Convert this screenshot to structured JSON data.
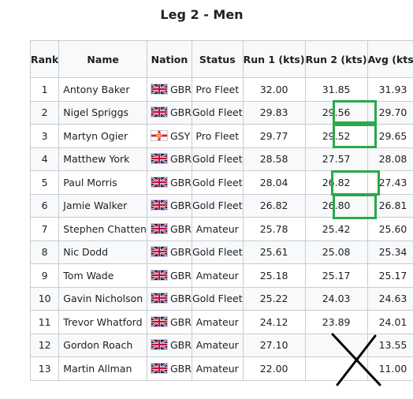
{
  "title": "Leg 2 - Men",
  "headers": {
    "rank": "Rank",
    "name": "Name",
    "nation": "Nation",
    "status": "Status",
    "run1": "Run 1 (kts)",
    "run2": "Run 2 (kts)",
    "avg": "Avg (kts)"
  },
  "rows": [
    {
      "rank": "1",
      "name": "Antony Baker",
      "flag": "gbr-flag-icon",
      "nation": "GBR",
      "status": "Pro Fleet",
      "run1": "32.00",
      "run2": "31.85",
      "avg": "31.93"
    },
    {
      "rank": "2",
      "name": "Nigel Spriggs",
      "flag": "gbr-flag-icon",
      "nation": "GBR",
      "status": "Gold Fleet",
      "run1": "29.83",
      "run2": "29.56",
      "avg": "29.70"
    },
    {
      "rank": "3",
      "name": "Martyn Ogier",
      "flag": "gsy-flag-icon",
      "nation": "GSY",
      "status": "Pro Fleet",
      "run1": "29.77",
      "run2": "29.52",
      "avg": "29.65"
    },
    {
      "rank": "4",
      "name": "Matthew York",
      "flag": "gbr-flag-icon",
      "nation": "GBR",
      "status": "Gold Fleet",
      "run1": "28.58",
      "run2": "27.57",
      "avg": "28.08"
    },
    {
      "rank": "5",
      "name": "Paul Morris",
      "flag": "gbr-flag-icon",
      "nation": "GBR",
      "status": "Gold Fleet",
      "run1": "28.04",
      "run2": "26.82",
      "avg": "27.43"
    },
    {
      "rank": "6",
      "name": "Jamie Walker",
      "flag": "gbr-flag-icon",
      "nation": "GBR",
      "status": "Gold Fleet",
      "run1": "26.82",
      "run2": "26.80",
      "avg": "26.81"
    },
    {
      "rank": "7",
      "name": "Stephen Chatten",
      "flag": "gbr-flag-icon",
      "nation": "GBR",
      "status": "Amateur",
      "run1": "25.78",
      "run2": "25.42",
      "avg": "25.60"
    },
    {
      "rank": "8",
      "name": "Nic Dodd",
      "flag": "gbr-flag-icon",
      "nation": "GBR",
      "status": "Gold Fleet",
      "run1": "25.61",
      "run2": "25.08",
      "avg": "25.34"
    },
    {
      "rank": "9",
      "name": "Tom Wade",
      "flag": "gbr-flag-icon",
      "nation": "GBR",
      "status": "Amateur",
      "run1": "25.18",
      "run2": "25.17",
      "avg": "25.17"
    },
    {
      "rank": "10",
      "name": "Gavin Nicholson",
      "flag": "gbr-flag-icon",
      "nation": "GBR",
      "status": "Gold Fleet",
      "run1": "25.22",
      "run2": "24.03",
      "avg": "24.63"
    },
    {
      "rank": "11",
      "name": "Trevor Whatford",
      "flag": "gbr-flag-icon",
      "nation": "GBR",
      "status": "Amateur",
      "run1": "24.12",
      "run2": "23.89",
      "avg": "24.01"
    },
    {
      "rank": "12",
      "name": "Gordon Roach",
      "flag": "gbr-flag-icon",
      "nation": "GBR",
      "status": "Amateur",
      "run1": "27.10",
      "run2": "",
      "avg": "13.55"
    },
    {
      "rank": "13",
      "name": "Martin Allman",
      "flag": "gbr-flag-icon",
      "nation": "GBR",
      "status": "Amateur",
      "run1": "22.00",
      "run2": "",
      "avg": "11.00"
    }
  ],
  "highlighted_avg_ranks": [
    "2",
    "3",
    "5",
    "6"
  ],
  "crossed_out_avg_ranks": [
    "12",
    "13"
  ],
  "colors": {
    "highlight_box": "#2aa84a",
    "cross_mark": "#000000",
    "table_border": "#c8ccd1",
    "header_bg": "#f8f9fa"
  }
}
